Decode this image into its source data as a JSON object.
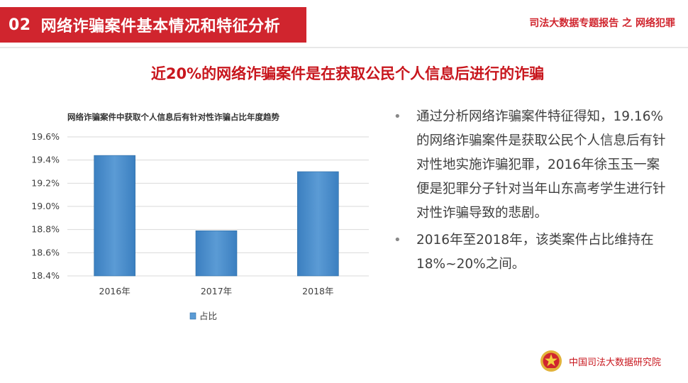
{
  "header": {
    "section_number": "02",
    "section_title": "网络诈骗案件基本情况和特征分析",
    "report_title": "司法大数据专题报告 之 网络犯罪"
  },
  "headline": "近20%的网络诈骗案件是在获取公民个人信息后进行的诈骗",
  "chart_data": {
    "type": "bar",
    "title": "网络诈骗案件中获取个人信息后有针对性诈骗占比年度趋势",
    "categories": [
      "2016年",
      "2017年",
      "2018年"
    ],
    "series": [
      {
        "name": "占比",
        "values": [
          19.44,
          18.79,
          19.3
        ]
      }
    ],
    "value_unit": "%",
    "ylim": [
      18.4,
      19.6
    ],
    "yticks": [
      "18.4%",
      "18.6%",
      "18.8%",
      "19.0%",
      "19.2%",
      "19.4%",
      "19.6%"
    ],
    "grid": true,
    "legend_position": "bottom",
    "colors": {
      "bar": "#5b9bd5",
      "bar_dark": "#3b7fc0",
      "grid": "#d9d9d9"
    }
  },
  "bullets": [
    "通过分析网络诈骗案件特征得知，19.16%的网络诈骗案件是获取公民个人信息后有针对性地实施诈骗犯罪，2016年徐玉玉一案便是犯罪分子针对当年山东高考学生进行针对性诈骗导致的悲剧。",
    "2016年至2018年，该类案件占比维持在18%~20%之间。"
  ],
  "bullet_marker": "•",
  "footer": {
    "institution": "中国司法大数据研究院",
    "emblem_icon": "court-emblem-icon"
  },
  "colors": {
    "accent": "#d0252e",
    "headline": "#c8161d",
    "text": "#404040"
  }
}
